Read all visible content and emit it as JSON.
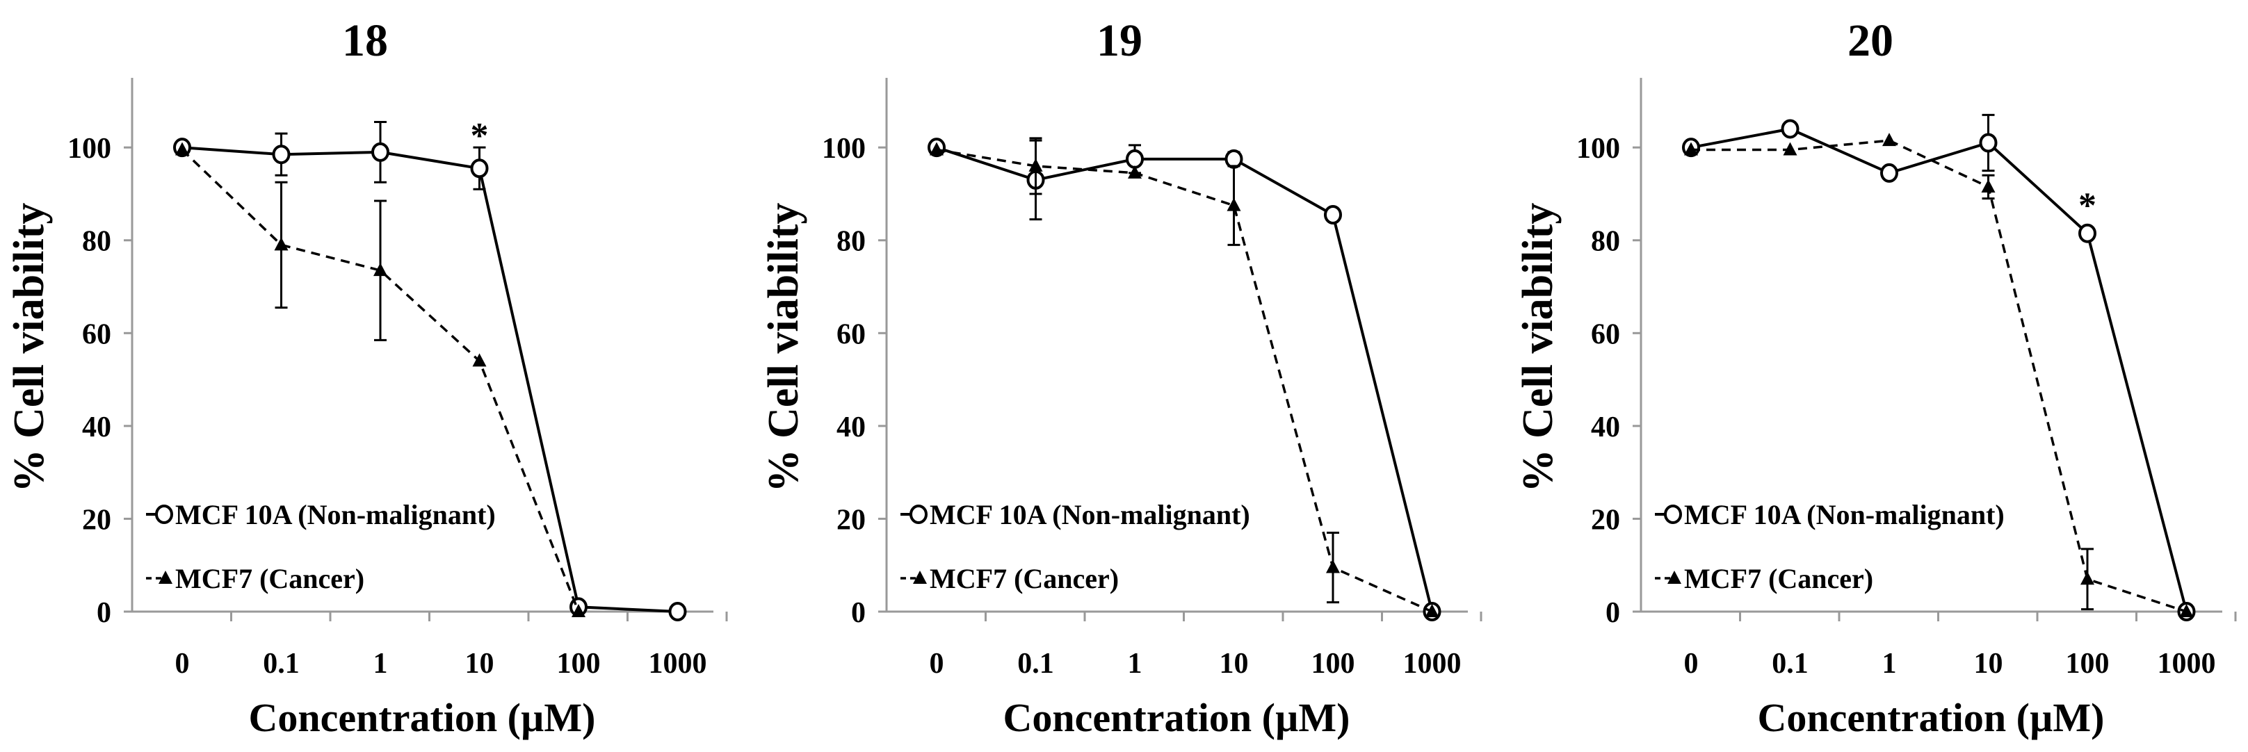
{
  "figure": {
    "legend": [
      {
        "label": "MCF 10A (Non-malignant)",
        "marker": "open-circle",
        "line": "solid"
      },
      {
        "label": "MCF7 (Cancer)",
        "marker": "filled-triangle",
        "line": "dashed"
      }
    ]
  },
  "chart_data": [
    {
      "type": "line",
      "title": "18",
      "xlabel": "Concentration (µM)",
      "ylabel": "% Cell viability",
      "categories": [
        "0",
        "0.1",
        "1",
        "10",
        "100",
        "1000"
      ],
      "yticks": [
        "0",
        "20",
        "40",
        "60",
        "80",
        "100"
      ],
      "ylim": [
        0,
        115
      ],
      "grid": false,
      "legend_position": "bottom-left",
      "series": [
        {
          "name": "MCF 10A (Non-malignant)",
          "values": [
            100,
            98.5,
            99,
            95.5,
            1,
            0
          ],
          "errors": [
            1,
            4.5,
            6.5,
            4.5,
            0,
            0
          ]
        },
        {
          "name": "MCF7 (Cancer)",
          "values": [
            99.5,
            79,
            73.5,
            54,
            0,
            null
          ],
          "errors": [
            0,
            13.5,
            15,
            0,
            0,
            null
          ]
        }
      ],
      "annotations": [
        {
          "text": "*",
          "category": "10",
          "value": 103
        }
      ]
    },
    {
      "type": "line",
      "title": "19",
      "xlabel": "Concentration (µM)",
      "ylabel": "% Cell viability",
      "categories": [
        "0",
        "0.1",
        "1",
        "10",
        "100",
        "1000"
      ],
      "yticks": [
        "0",
        "20",
        "40",
        "60",
        "80",
        "100"
      ],
      "ylim": [
        0,
        115
      ],
      "grid": false,
      "legend_position": "bottom-left",
      "series": [
        {
          "name": "MCF 10A (Non-malignant)",
          "values": [
            100,
            93,
            97.5,
            97.5,
            85.5,
            0
          ],
          "errors": [
            0,
            8.5,
            3,
            1.5,
            0,
            0
          ]
        },
        {
          "name": "MCF7 (Cancer)",
          "values": [
            99.5,
            96,
            94.5,
            87.5,
            9.5,
            0
          ],
          "errors": [
            0,
            6,
            0,
            8.5,
            7.5,
            0
          ]
        }
      ],
      "annotations": []
    },
    {
      "type": "line",
      "title": "20",
      "xlabel": "Concentration (µM)",
      "ylabel": "% Cell viability",
      "categories": [
        "0",
        "0.1",
        "1",
        "10",
        "100",
        "1000"
      ],
      "yticks": [
        "0",
        "20",
        "40",
        "60",
        "80",
        "100"
      ],
      "ylim": [
        0,
        115
      ],
      "grid": false,
      "legend_position": "bottom-left",
      "series": [
        {
          "name": "MCF 10A (Non-malignant)",
          "values": [
            100,
            104,
            94.5,
            101,
            81.5,
            0
          ],
          "errors": [
            0,
            0,
            0,
            6,
            0,
            0
          ]
        },
        {
          "name": "MCF7 (Cancer)",
          "values": [
            99.5,
            99.5,
            101.5,
            91.5,
            7,
            0
          ],
          "errors": [
            0,
            0,
            0,
            2.5,
            6.5,
            0
          ]
        }
      ],
      "annotations": [
        {
          "text": "*",
          "category": "100",
          "value": 88
        }
      ]
    }
  ]
}
